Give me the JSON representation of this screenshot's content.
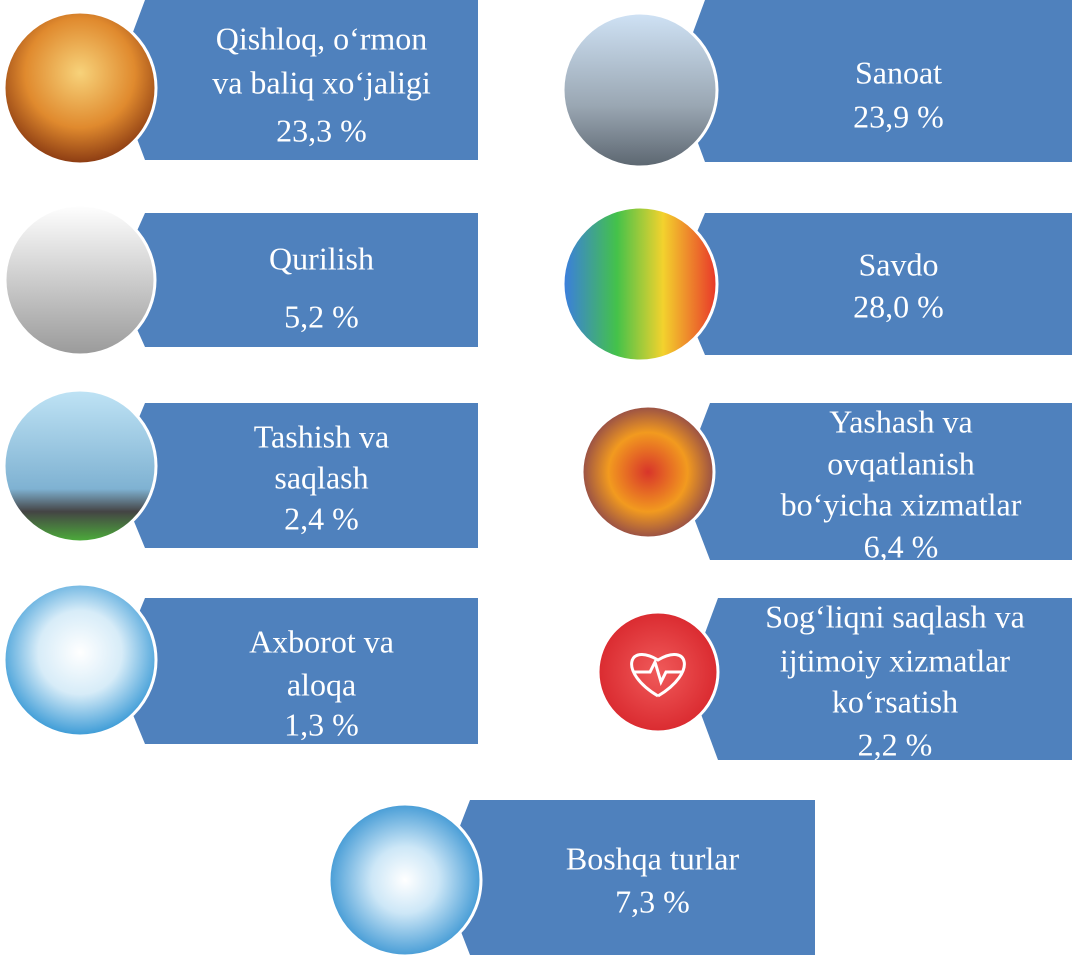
{
  "items": [
    {
      "lines": [
        "Qishloq, o‘rmon",
        "va baliq xo‘jaligi",
        "23,3 %"
      ]
    },
    {
      "lines": [
        "Sanoat",
        "23,9 %"
      ]
    },
    {
      "lines": [
        "Qurilish",
        "5,2 %"
      ]
    },
    {
      "lines": [
        "Savdo",
        "28,0 %"
      ]
    },
    {
      "lines": [
        "Tashish va",
        "saqlash",
        "2,4 %"
      ]
    },
    {
      "lines": [
        "Yashash va",
        "ovqatlanish",
        "bo‘yicha xizmatlar",
        "6,4 %"
      ]
    },
    {
      "lines": [
        "Axborot va",
        "aloqa",
        "1,3 %"
      ]
    },
    {
      "lines": [
        "Sog‘liqni saqlash va",
        "ijtimoiy xizmatlar",
        "ko‘rsatish",
        "2,2 %"
      ]
    },
    {
      "lines": [
        "Boshqa turlar",
        "7,3 %"
      ]
    }
  ]
}
